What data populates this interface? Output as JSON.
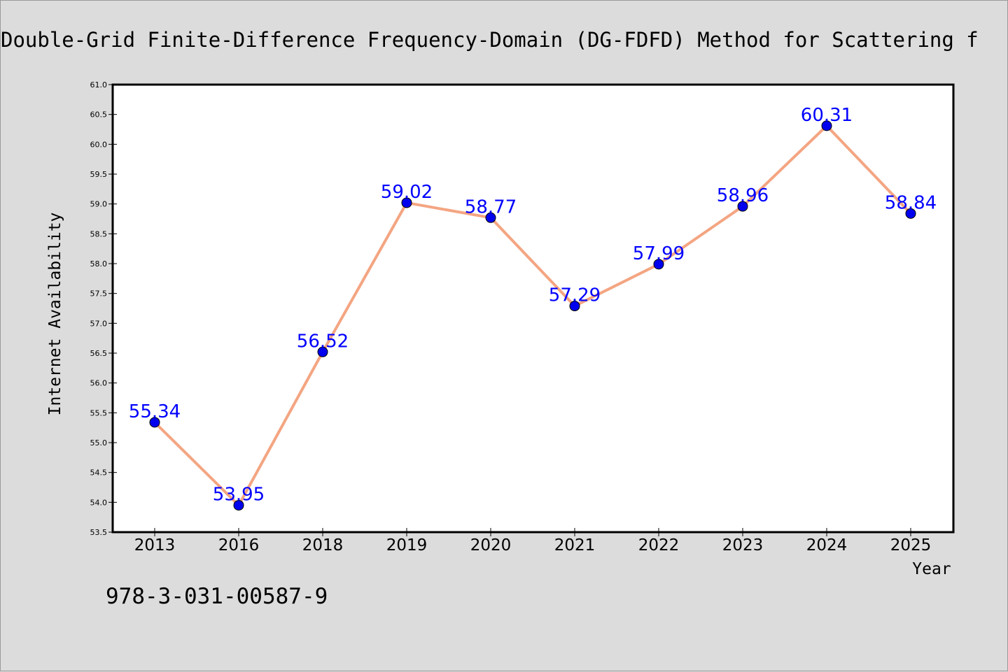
{
  "chart_data": {
    "type": "line",
    "title": "Double-Grid Finite-Difference Frequency-Domain (DG-FDFD) Method for Scattering f",
    "xlabel": "Year",
    "ylabel": "Internet Availability",
    "categories": [
      "2013",
      "2016",
      "2018",
      "2019",
      "2020",
      "2021",
      "2022",
      "2023",
      "2024",
      "2025"
    ],
    "series": [
      {
        "values": [
          55.34,
          53.95,
          56.52,
          59.02,
          58.77,
          57.29,
          57.99,
          58.96,
          60.31,
          58.84
        ],
        "data_labels": [
          "55.34",
          "53.95",
          "56.52",
          "59.02",
          "58.77",
          "57.29",
          "57.99",
          "58.96",
          "60.31",
          "58.84"
        ]
      }
    ],
    "ylim": [
      53.5,
      61.0
    ],
    "yticks": [
      "53.5",
      "54.0",
      "54.5",
      "55.0",
      "55.5",
      "56.0",
      "56.5",
      "57.0",
      "57.5",
      "58.0",
      "58.5",
      "59.0",
      "59.5",
      "60.0",
      "60.5",
      "61.0"
    ],
    "grid": false,
    "legend": "none",
    "colors": {
      "line": "#f4a582",
      "marker": "#0000ee",
      "label": "#0000ff",
      "background": "#dcdcdc",
      "plot_background": "#ffffff"
    }
  },
  "footer": {
    "isbn": "978-3-031-00587-9"
  }
}
